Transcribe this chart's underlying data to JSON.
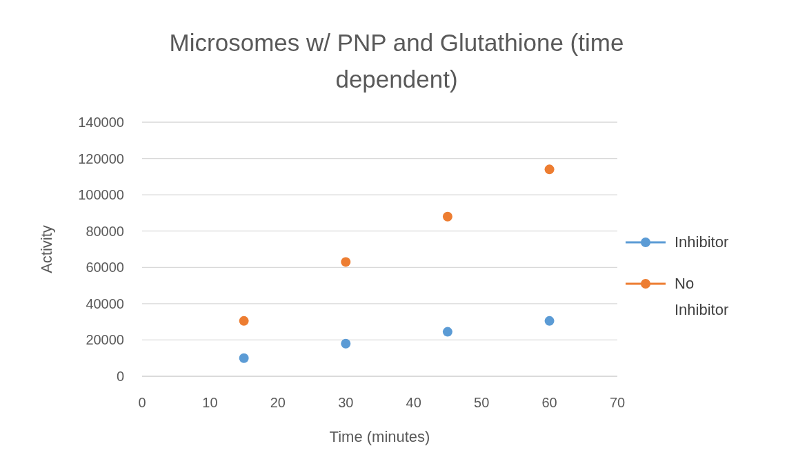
{
  "chart_data": {
    "type": "scatter",
    "title": "Microsomes w/ PNP and Glutathione (time dependent)",
    "xlabel": "Time (minutes)",
    "ylabel": "Activity",
    "x": [
      15,
      30,
      45,
      60
    ],
    "series": [
      {
        "name": "Inhibitor",
        "color": "#5b9bd5",
        "values": [
          10000,
          18000,
          24500,
          30500
        ]
      },
      {
        "name": "No Inhibitor",
        "color": "#ed7d31",
        "values": [
          30500,
          63000,
          88000,
          114000
        ]
      }
    ],
    "xlim": [
      0,
      70
    ],
    "xticks": [
      0,
      10,
      20,
      30,
      40,
      50,
      60,
      70
    ],
    "ylim": [
      0,
      140000
    ],
    "yticks": [
      0,
      20000,
      40000,
      60000,
      80000,
      100000,
      120000,
      140000
    ],
    "grid": "y",
    "legend": "right",
    "marker": "circle"
  }
}
